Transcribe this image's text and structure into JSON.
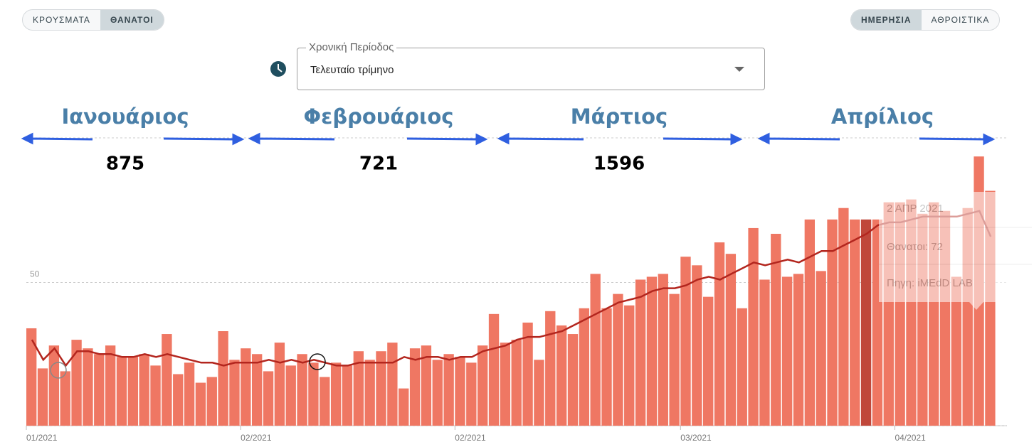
{
  "toggles": {
    "metric": [
      "ΚΡΟΥΣΜΑΤΑ",
      "ΘΑΝΑΤΟΙ"
    ],
    "mode": [
      "ΗΜΕΡΗΣΙΑ",
      "ΑΘΡΟΙΣΤΙΚΑ"
    ]
  },
  "period": {
    "label": "Χρονική Περίοδος",
    "value": "Τελευταίο τρίμηνο"
  },
  "months": [
    {
      "name": "Ιανουάριος",
      "total": 875
    },
    {
      "name": "Φεβρουάριος",
      "total": 721
    },
    {
      "name": "Μάρτιος",
      "total": 1596
    },
    {
      "name": "Απρίλιος"
    }
  ],
  "tooltip": {
    "date": "2 ΑΠΡ 2021",
    "value": "Θανατοι: 72",
    "source": "Πηγη: iMEdD LAB"
  },
  "chart_data": {
    "type": "bar",
    "categories": [
      "01/2021",
      null,
      null,
      null,
      null,
      null,
      null,
      null,
      null,
      null,
      null,
      null,
      null,
      null,
      null,
      null,
      null,
      null,
      null,
      "02/2021",
      null,
      null,
      null,
      null,
      null,
      null,
      null,
      null,
      null,
      null,
      null,
      null,
      null,
      null,
      null,
      null,
      null,
      null,
      "02/2021",
      null,
      null,
      null,
      null,
      null,
      null,
      null,
      null,
      null,
      null,
      null,
      null,
      null,
      null,
      null,
      null,
      null,
      null,
      null,
      "03/2021",
      null,
      null,
      null,
      null,
      null,
      null,
      null,
      null,
      null,
      null,
      null,
      null,
      null,
      null,
      null,
      null,
      null,
      null,
      "04/2021",
      null,
      null,
      null,
      null,
      null,
      null,
      null,
      null
    ],
    "series": [
      {
        "color": "#ef7763",
        "highlight_color": "#c0473a",
        "values": [
          34,
          20,
          28,
          19,
          30,
          27,
          25,
          28,
          24,
          24,
          25,
          21,
          32,
          18,
          22,
          15,
          17,
          33,
          23,
          27,
          25,
          19,
          29,
          21,
          25,
          22,
          17,
          22,
          21,
          26,
          23,
          26,
          29,
          13,
          27,
          28,
          23,
          25,
          24,
          22,
          28,
          39,
          29,
          30,
          36,
          23,
          40,
          35,
          32,
          41,
          53,
          41,
          46,
          42,
          51,
          52,
          53,
          46,
          59,
          56,
          45,
          64,
          60,
          41,
          69,
          51,
          67,
          52,
          53,
          72,
          54,
          72,
          76,
          72,
          72,
          72,
          78,
          78,
          79,
          74,
          78,
          75,
          52,
          76,
          94,
          82
        ],
        "highlighted": [
          false,
          false,
          false,
          false,
          false,
          false,
          false,
          false,
          false,
          false,
          false,
          false,
          false,
          false,
          false,
          false,
          false,
          false,
          false,
          false,
          false,
          false,
          false,
          false,
          false,
          false,
          false,
          false,
          false,
          false,
          false,
          false,
          false,
          false,
          false,
          false,
          false,
          false,
          false,
          false,
          false,
          false,
          false,
          false,
          false,
          false,
          false,
          false,
          false,
          false,
          false,
          false,
          false,
          false,
          false,
          false,
          false,
          false,
          false,
          false,
          false,
          false,
          false,
          false,
          false,
          false,
          false,
          false,
          false,
          false,
          false,
          false,
          false,
          false,
          true,
          false,
          false,
          false,
          false,
          false,
          false,
          false,
          false,
          false,
          false,
          false
        ]
      },
      {
        "type": "line",
        "color": "#b3261e",
        "values": [
          30,
          23,
          27,
          21,
          26,
          26,
          25,
          25,
          24,
          24,
          25,
          24,
          25,
          24,
          23,
          22,
          22,
          21,
          22,
          22,
          22,
          23,
          22,
          23,
          22,
          23,
          22,
          21,
          21,
          22,
          22,
          22,
          22,
          24,
          23,
          24,
          24,
          23,
          24,
          24,
          26,
          27,
          28,
          30,
          31,
          31,
          32,
          33,
          35,
          37,
          39,
          41,
          43,
          44,
          45,
          47,
          48,
          48,
          49,
          51,
          52,
          51,
          53,
          55,
          57,
          56,
          57,
          58,
          57,
          59,
          61,
          61,
          63,
          65,
          67,
          70,
          71,
          71,
          72,
          73,
          73,
          73,
          73,
          74,
          75,
          66
        ]
      }
    ],
    "ylim": [
      0,
      100
    ],
    "yticks": [
      0,
      50
    ],
    "grid": true
  }
}
